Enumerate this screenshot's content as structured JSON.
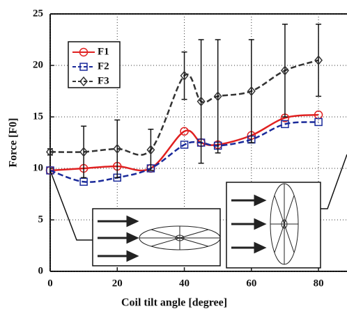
{
  "chart_data": {
    "type": "line",
    "x_label": "Coil tilt angle [degree]",
    "y_label": "Force [F0]",
    "x": [
      0,
      10,
      20,
      30,
      40,
      45,
      50,
      60,
      70,
      80
    ],
    "series": [
      {
        "name": "F1",
        "color": "#e02020",
        "marker": "circle",
        "dash": "solid",
        "values": [
          9.8,
          10.0,
          10.2,
          10.0,
          13.6,
          12.5,
          12.3,
          13.2,
          14.9,
          15.2
        ]
      },
      {
        "name": "F2",
        "color": "#1a2a9a",
        "marker": "square",
        "dash": "dashed",
        "values": [
          9.8,
          8.7,
          9.1,
          10.0,
          12.3,
          12.5,
          12.2,
          12.8,
          14.3,
          14.5
        ]
      },
      {
        "name": "F3",
        "color": "#333333",
        "marker": "diamond",
        "dash": "dashed",
        "values": [
          11.6,
          11.6,
          11.9,
          11.8,
          19.0,
          16.5,
          17.0,
          17.5,
          19.5,
          20.5
        ],
        "errors": [
          0.3,
          2.5,
          2.8,
          2.0,
          2.3,
          6.0,
          5.5,
          5.0,
          4.5,
          3.5
        ]
      }
    ],
    "xlim": [
      0,
      88.5
    ],
    "ylim": [
      0,
      25
    ],
    "xticks": [
      0,
      20,
      40,
      60,
      80
    ],
    "yticks": [
      0,
      5,
      10,
      15,
      20,
      25
    ],
    "grid": true,
    "legend": "upper-left"
  }
}
